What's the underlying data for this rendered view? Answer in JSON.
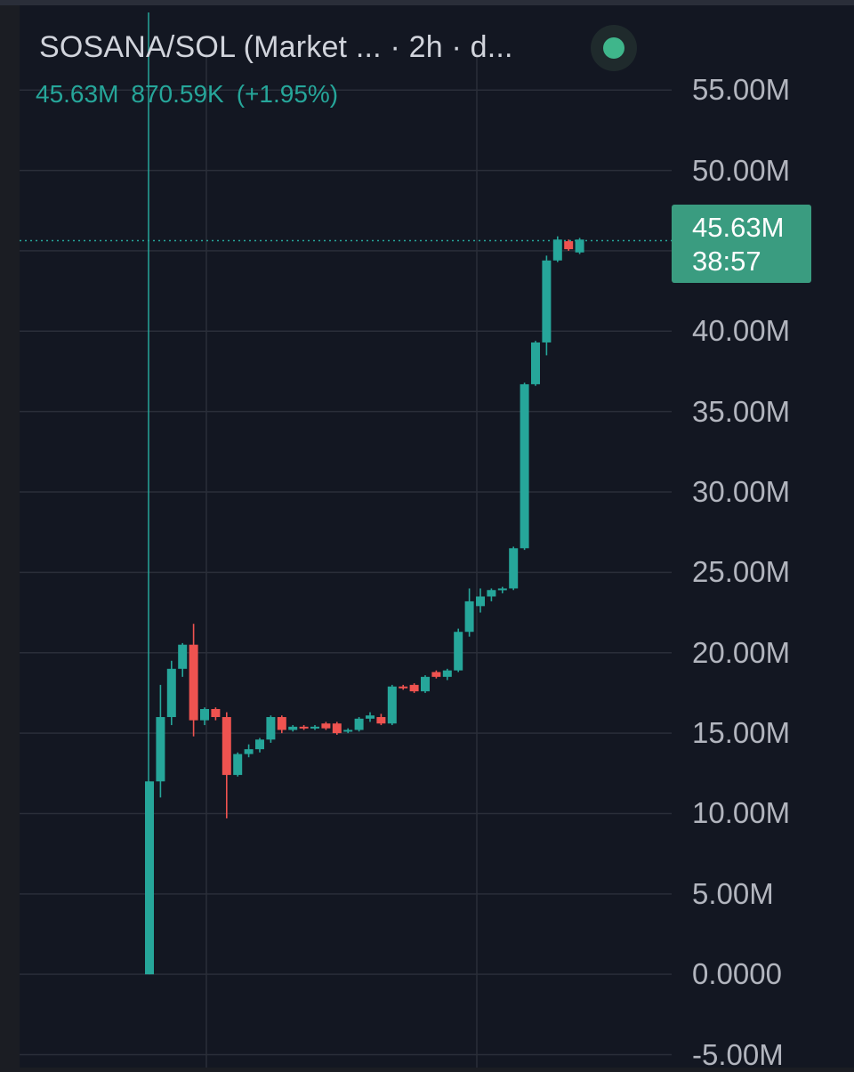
{
  "header": {
    "title": "SOSANA/SOL (Market ... · 2h · d...",
    "ohlc": [
      "45.63M",
      "870.59K",
      "(+1.95%)"
    ]
  },
  "price_label": {
    "value": "45.63M",
    "timer": "38:57"
  },
  "colors": {
    "background": "#131722",
    "up": "#26a69a",
    "down": "#ef5350",
    "grid": "#2a2e39",
    "axis_text": "#b2b5be",
    "price_label_bg": "#3a9c80"
  },
  "chart_data": {
    "type": "candlestick",
    "timeframe": "2h",
    "y_tick_labels": [
      "55.00M",
      "50.00M",
      "45.00M",
      "40.00M",
      "35.00M",
      "30.00M",
      "25.00M",
      "20.00M",
      "15.00M",
      "10.00M",
      "5.00M",
      "0.0000",
      "-5.00M"
    ],
    "y_ticks": [
      55,
      50,
      45,
      40,
      35,
      30,
      25,
      20,
      15,
      10,
      5,
      0,
      -5
    ],
    "ylim": [
      -5.8,
      60.6
    ],
    "y_unit": "M",
    "current_price": 45.63,
    "grid": true,
    "candles": [
      {
        "o": 0.0,
        "h": 12.0,
        "l": 0.0,
        "c": 12.0
      },
      {
        "o": 12.0,
        "h": 18.0,
        "l": 11.0,
        "c": 16.0
      },
      {
        "o": 16.0,
        "h": 19.5,
        "l": 15.5,
        "c": 19.0
      },
      {
        "o": 19.0,
        "h": 20.6,
        "l": 18.5,
        "c": 20.5
      },
      {
        "o": 20.5,
        "h": 21.8,
        "l": 14.8,
        "c": 15.8
      },
      {
        "o": 15.8,
        "h": 16.6,
        "l": 15.5,
        "c": 16.5
      },
      {
        "o": 16.5,
        "h": 16.6,
        "l": 15.8,
        "c": 16.0
      },
      {
        "o": 16.0,
        "h": 16.3,
        "l": 9.7,
        "c": 12.4
      },
      {
        "o": 12.4,
        "h": 13.8,
        "l": 12.3,
        "c": 13.7
      },
      {
        "o": 13.7,
        "h": 14.3,
        "l": 13.5,
        "c": 14.0
      },
      {
        "o": 14.0,
        "h": 14.7,
        "l": 13.8,
        "c": 14.6
      },
      {
        "o": 14.6,
        "h": 16.1,
        "l": 14.4,
        "c": 16.0
      },
      {
        "o": 16.0,
        "h": 16.1,
        "l": 15.0,
        "c": 15.2
      },
      {
        "o": 15.2,
        "h": 15.5,
        "l": 15.1,
        "c": 15.4
      },
      {
        "o": 15.4,
        "h": 15.5,
        "l": 15.2,
        "c": 15.3
      },
      {
        "o": 15.3,
        "h": 15.5,
        "l": 15.2,
        "c": 15.4
      },
      {
        "o": 15.6,
        "h": 15.7,
        "l": 15.2,
        "c": 15.3
      },
      {
        "o": 15.6,
        "h": 15.7,
        "l": 14.9,
        "c": 15.0
      },
      {
        "o": 15.1,
        "h": 15.3,
        "l": 15.0,
        "c": 15.2
      },
      {
        "o": 15.2,
        "h": 16.0,
        "l": 15.1,
        "c": 15.9
      },
      {
        "o": 15.9,
        "h": 16.3,
        "l": 15.7,
        "c": 16.1
      },
      {
        "o": 16.0,
        "h": 16.2,
        "l": 15.5,
        "c": 15.6
      },
      {
        "o": 15.6,
        "h": 18.0,
        "l": 15.5,
        "c": 17.9
      },
      {
        "o": 17.9,
        "h": 18.0,
        "l": 17.7,
        "c": 17.8
      },
      {
        "o": 18.0,
        "h": 18.1,
        "l": 17.5,
        "c": 17.6
      },
      {
        "o": 17.6,
        "h": 18.6,
        "l": 17.5,
        "c": 18.5
      },
      {
        "o": 18.8,
        "h": 18.9,
        "l": 18.4,
        "c": 18.5
      },
      {
        "o": 18.5,
        "h": 19.0,
        "l": 18.3,
        "c": 18.9
      },
      {
        "o": 18.9,
        "h": 21.5,
        "l": 18.8,
        "c": 21.3
      },
      {
        "o": 21.3,
        "h": 24.0,
        "l": 21.0,
        "c": 23.2
      },
      {
        "o": 22.9,
        "h": 24.0,
        "l": 22.5,
        "c": 23.5
      },
      {
        "o": 23.5,
        "h": 24.0,
        "l": 23.2,
        "c": 23.9
      },
      {
        "o": 23.9,
        "h": 24.1,
        "l": 23.7,
        "c": 24.0
      },
      {
        "o": 24.0,
        "h": 26.6,
        "l": 23.9,
        "c": 26.5
      },
      {
        "o": 26.5,
        "h": 36.8,
        "l": 26.4,
        "c": 36.7
      },
      {
        "o": 36.7,
        "h": 39.4,
        "l": 36.6,
        "c": 39.3
      },
      {
        "o": 39.3,
        "h": 44.7,
        "l": 38.5,
        "c": 44.4
      },
      {
        "o": 44.4,
        "h": 45.9,
        "l": 44.3,
        "c": 45.7
      },
      {
        "o": 45.6,
        "h": 45.7,
        "l": 45.0,
        "c": 45.1
      },
      {
        "o": 44.9,
        "h": 45.8,
        "l": 44.8,
        "c": 45.7
      }
    ]
  }
}
